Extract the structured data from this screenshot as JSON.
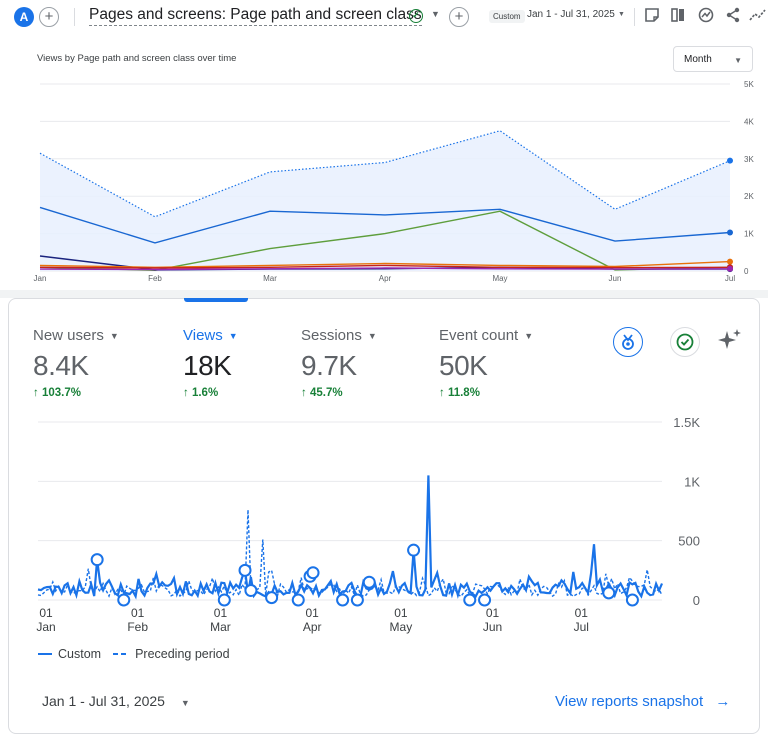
{
  "topbar": {
    "avatar_letter": "A",
    "title": "Pages and screens: Page path and screen class",
    "custom_chip": "Custom",
    "date_range": "Jan 1 - Jul 31, 2025",
    "icons": [
      "add-icon",
      "check-circle-icon",
      "add-comparison-icon",
      "annotation-icon",
      "compare-icon",
      "insights-icon",
      "share-icon",
      "trend-icon"
    ]
  },
  "chart1": {
    "title": "Views by Page path and screen class over time",
    "granularity": "Month"
  },
  "metrics": [
    {
      "label": "New users",
      "value": "8.4K",
      "delta": "103.7%",
      "active": false
    },
    {
      "label": "Views",
      "value": "18K",
      "delta": "1.6%",
      "active": true
    },
    {
      "label": "Sessions",
      "value": "9.7K",
      "delta": "45.7%",
      "active": false
    },
    {
      "label": "Event count",
      "value": "50K",
      "delta": "11.8%",
      "active": false
    }
  ],
  "legend": {
    "custom": "Custom",
    "preceding": "Preceding period"
  },
  "footer": {
    "date_range": "Jan 1 - Jul 31, 2025",
    "snapshot_link": "View reports snapshot"
  },
  "colors": {
    "accent": "#1a73e8",
    "positive": "#188038",
    "series_total": "#1a73e8",
    "series_2": "#1967d2",
    "series_3": "#5e9e3c",
    "series_4": "#1a237e",
    "series_5": "#e8710a",
    "series_6": "#c5221f",
    "series_7": "#9c27b0"
  },
  "chart_data": [
    {
      "type": "line",
      "title": "Views by Page path and screen class over time",
      "categories": [
        "Jan",
        "Feb",
        "Mar",
        "Apr",
        "May",
        "Jun",
        "Jul"
      ],
      "ylim": [
        0,
        5000
      ],
      "yticks": [
        "0",
        "1K",
        "2K",
        "3K",
        "4K",
        "5K"
      ],
      "series": [
        {
          "values": [
            3150,
            1450,
            2650,
            2900,
            3750,
            1650,
            2950
          ],
          "style": "dotted-area",
          "color": "#1a73e8"
        },
        {
          "values": [
            1700,
            750,
            1600,
            1500,
            1650,
            800,
            1030
          ],
          "color": "#1967d2"
        },
        {
          "values": [
            100,
            20,
            600,
            1000,
            1600,
            30,
            100
          ],
          "color": "#5e9e3c"
        },
        {
          "values": [
            400,
            30,
            50,
            60,
            100,
            50,
            50
          ],
          "color": "#1a237e"
        },
        {
          "values": [
            150,
            100,
            150,
            200,
            150,
            120,
            250
          ],
          "color": "#e8710a"
        },
        {
          "values": [
            100,
            80,
            100,
            150,
            100,
            90,
            100
          ],
          "color": "#c5221f"
        },
        {
          "values": [
            50,
            40,
            60,
            80,
            60,
            50,
            60
          ],
          "color": "#9c27b0"
        }
      ]
    },
    {
      "type": "line",
      "xlabels": [
        [
          "01",
          "Jan"
        ],
        [
          "01",
          "Feb"
        ],
        [
          "01",
          "Mar"
        ],
        [
          "01",
          "Apr"
        ],
        [
          "01",
          "May"
        ],
        [
          "01",
          "Jun"
        ],
        [
          "01",
          "Jul"
        ]
      ],
      "ylim": [
        0,
        1500
      ],
      "yticks": [
        "0",
        "500",
        "1K",
        "1.5K"
      ],
      "series": [
        {
          "name": "Custom",
          "style": "solid"
        },
        {
          "name": "Preceding period",
          "style": "dashed"
        }
      ]
    }
  ]
}
